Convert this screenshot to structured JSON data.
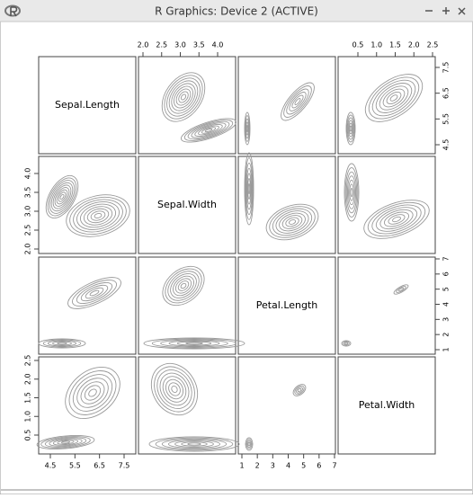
{
  "window": {
    "title": "R Graphics: Device 2 (ACTIVE)"
  },
  "plot": {
    "variables": [
      "Sepal.Length",
      "Sepal.Width",
      "Petal.Length",
      "Petal.Width"
    ],
    "axes": {
      "top": [
        [
          "2.0",
          "2.5",
          "3.0",
          "3.5",
          "4.0"
        ],
        [
          "0.5",
          "1.0",
          "1.5",
          "2.0",
          "2.5"
        ]
      ],
      "right": [
        [
          "4.5",
          "5.5",
          "6.5",
          "7.5"
        ],
        [
          "1",
          "2",
          "3",
          "4",
          "5",
          "6",
          "7"
        ]
      ],
      "left": [
        [
          "2.0",
          "2.5",
          "3.0",
          "3.5",
          "4.0"
        ],
        [
          "0.5",
          "1.0",
          "1.5",
          "2.0",
          "2.5"
        ]
      ],
      "bottom": [
        [
          "4.5",
          "5.5",
          "6.5",
          "7.5"
        ],
        [
          "1",
          "2",
          "3",
          "4",
          "5",
          "6",
          "7"
        ]
      ]
    }
  }
}
